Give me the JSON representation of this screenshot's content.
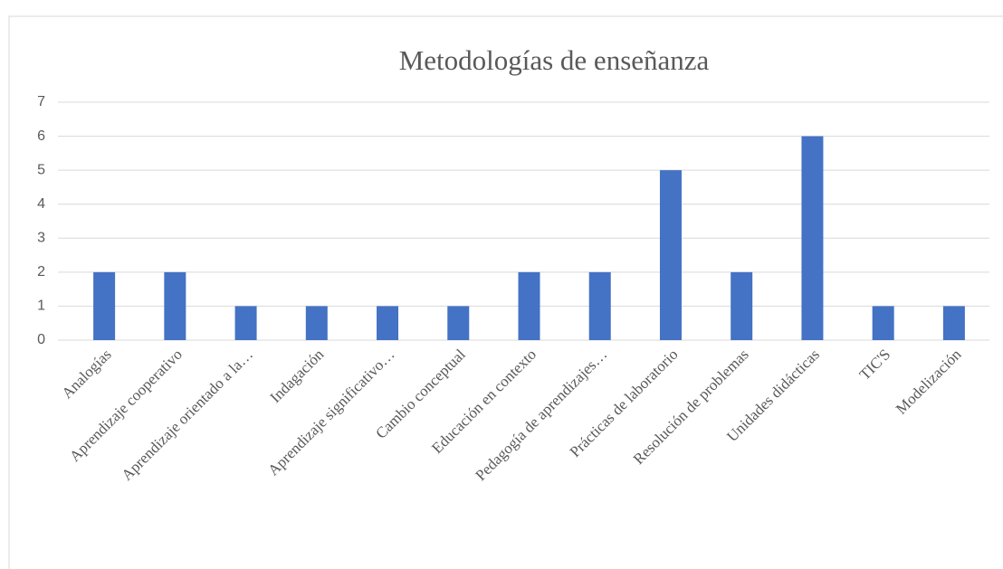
{
  "chart_data": {
    "type": "bar",
    "title": "Metodologías de enseñanza",
    "categories": [
      "Analogías",
      "Aprendizaje cooperativo",
      "Aprendizaje orientado a la…",
      "Indagación",
      "Aprendizaje significativo…",
      "Cambio conceptual",
      "Educación en contexto",
      "Pedagogía de aprendizajes…",
      "Prácticas de laboratorio",
      "Resolución de problemas",
      "Unidades didácticas",
      "TIC'S",
      "Modelización"
    ],
    "values": [
      2,
      2,
      1,
      1,
      1,
      1,
      2,
      2,
      5,
      2,
      6,
      1,
      1
    ],
    "color": "#4472c4",
    "ylim": [
      0,
      7
    ],
    "yticks": [
      0,
      1,
      2,
      3,
      4,
      5,
      6,
      7
    ],
    "grid": true
  }
}
